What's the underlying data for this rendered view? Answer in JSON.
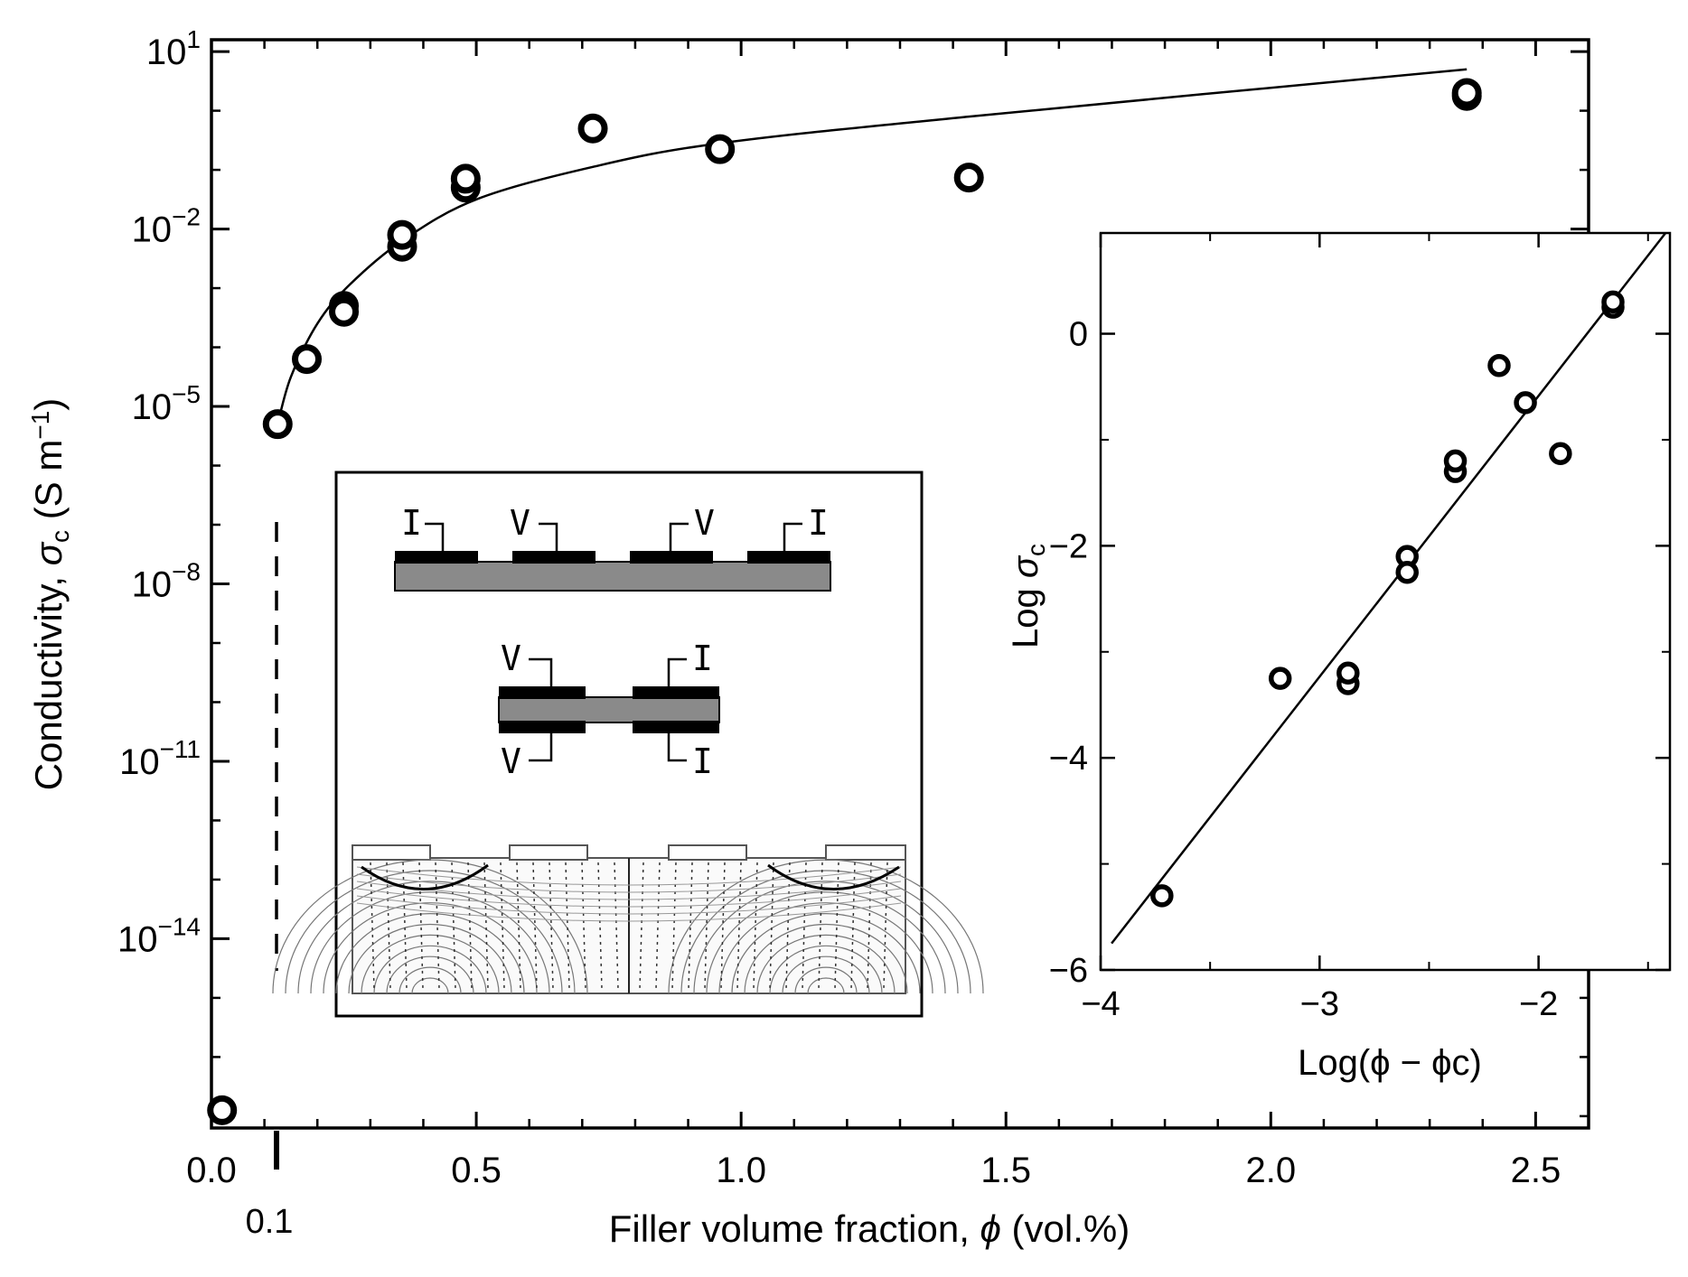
{
  "chart_data": [
    {
      "type": "scatter",
      "xlabel_prefix": "Filler volume fraction, ",
      "xlabel_symbol": "ϕ",
      "xlabel_suffix": " (vol.%)",
      "ylabel_prefix": "Conductivity, ",
      "ylabel_symbol": "σ",
      "ylabel_sub": "c",
      "ylabel_suffix": " (S m",
      "ylabel_exp": "−1",
      "ylabel_close": ")",
      "xlim": [
        0.0,
        2.6
      ],
      "ylim_log10": [
        -17.2,
        1.2
      ],
      "y_scale": "log",
      "xticks": [
        {
          "value": 0.0,
          "label": "0.0"
        },
        {
          "value": 0.5,
          "label": "0.5"
        },
        {
          "value": 1.0,
          "label": "1.0"
        },
        {
          "value": 1.5,
          "label": "1.5"
        },
        {
          "value": 2.0,
          "label": "2.0"
        },
        {
          "value": 2.5,
          "label": "2.5"
        }
      ],
      "yticks": [
        {
          "exp": 1,
          "base": "10",
          "sup": "1"
        },
        {
          "exp": -2,
          "base": "10",
          "sup": "−2"
        },
        {
          "exp": -5,
          "base": "10",
          "sup": "−5"
        },
        {
          "exp": -8,
          "base": "10",
          "sup": "−8"
        },
        {
          "exp": -11,
          "base": "10",
          "sup": "−11"
        },
        {
          "exp": -14,
          "base": "10",
          "sup": "−14"
        }
      ],
      "percolation_threshold": {
        "value": 0.1,
        "label": "0.1"
      },
      "points_log10": [
        {
          "x": 0.02,
          "y": -16.9
        },
        {
          "x": 0.125,
          "y": -5.3
        },
        {
          "x": 0.18,
          "y": -4.2
        },
        {
          "x": 0.25,
          "y": -3.3
        },
        {
          "x": 0.25,
          "y": -3.4
        },
        {
          "x": 0.36,
          "y": -2.3
        },
        {
          "x": 0.36,
          "y": -2.1
        },
        {
          "x": 0.48,
          "y": -1.3
        },
        {
          "x": 0.48,
          "y": -1.15
        },
        {
          "x": 0.72,
          "y": -0.3
        },
        {
          "x": 0.96,
          "y": -0.65
        },
        {
          "x": 1.43,
          "y": -1.13
        },
        {
          "x": 2.37,
          "y": 0.25
        },
        {
          "x": 2.37,
          "y": 0.3
        }
      ],
      "fit_curve_log10": [
        {
          "x": 0.125,
          "y": -5.3
        },
        {
          "x": 0.15,
          "y": -4.5
        },
        {
          "x": 0.2,
          "y": -3.6
        },
        {
          "x": 0.26,
          "y": -2.95
        },
        {
          "x": 0.36,
          "y": -2.2
        },
        {
          "x": 0.5,
          "y": -1.5
        },
        {
          "x": 0.72,
          "y": -0.95
        },
        {
          "x": 0.96,
          "y": -0.55
        },
        {
          "x": 1.43,
          "y": -0.1
        },
        {
          "x": 2.37,
          "y": 0.7
        }
      ]
    },
    {
      "type": "scatter",
      "xlabel": "Log(ϕ − ϕc)",
      "ylabel_prefix": "Log ",
      "ylabel_symbol": "σ",
      "ylabel_sub": "c",
      "xlim": [
        -4.0,
        -1.4
      ],
      "ylim": [
        -6.0,
        0.95
      ],
      "xticks": [
        {
          "value": -4,
          "label": "−4"
        },
        {
          "value": -3,
          "label": "−3"
        },
        {
          "value": -2,
          "label": "−2"
        }
      ],
      "yticks": [
        {
          "value": 0,
          "label": "0"
        },
        {
          "value": -2,
          "label": "−2"
        },
        {
          "value": -4,
          "label": "−4"
        },
        {
          "value": -6,
          "label": "−6"
        }
      ],
      "points": [
        {
          "x": -3.72,
          "y": -5.3
        },
        {
          "x": -3.18,
          "y": -3.25
        },
        {
          "x": -2.87,
          "y": -3.3
        },
        {
          "x": -2.87,
          "y": -3.2
        },
        {
          "x": -2.6,
          "y": -2.1
        },
        {
          "x": -2.6,
          "y": -2.25
        },
        {
          "x": -2.38,
          "y": -1.3
        },
        {
          "x": -2.38,
          "y": -1.2
        },
        {
          "x": -2.18,
          "y": -0.3
        },
        {
          "x": -2.06,
          "y": -0.65
        },
        {
          "x": -1.9,
          "y": -1.13
        },
        {
          "x": -1.66,
          "y": 0.25
        },
        {
          "x": -1.66,
          "y": 0.3
        }
      ],
      "fit_line": [
        {
          "x": -3.95,
          "y": -5.75
        },
        {
          "x": -1.42,
          "y": 0.95
        }
      ]
    }
  ],
  "schematic": {
    "top_labels": [
      "I",
      "V",
      "V",
      "I"
    ],
    "mid_labels_top": [
      "V",
      "I"
    ],
    "mid_labels_bottom": [
      "V",
      "I"
    ]
  }
}
